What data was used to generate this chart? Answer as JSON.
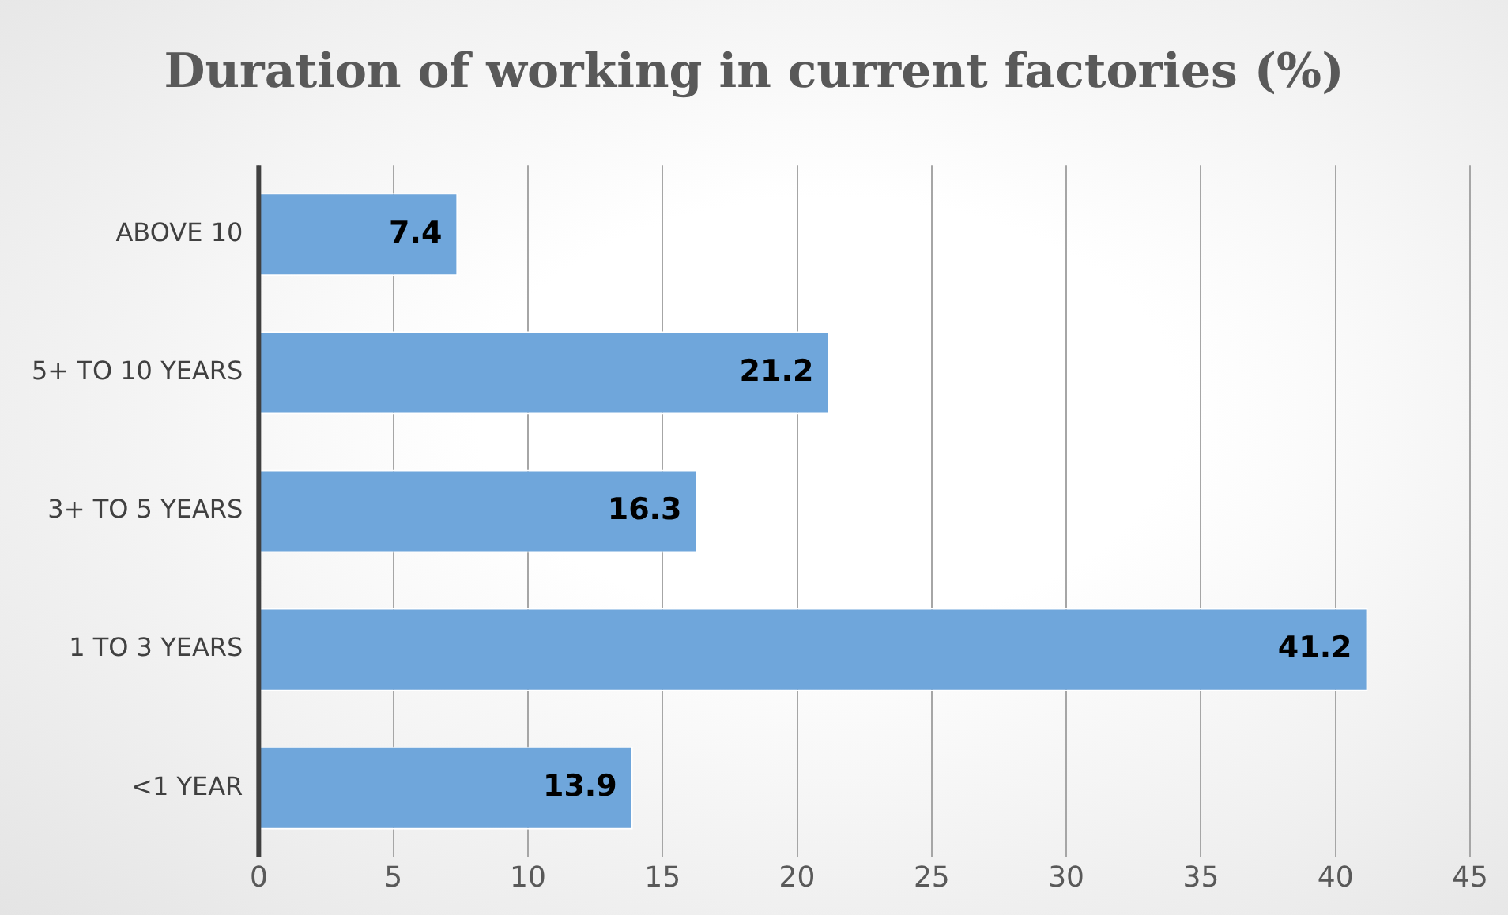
{
  "chart_data": {
    "type": "bar",
    "orientation": "horizontal",
    "title": "Duration of working in current factories (%)",
    "categories": [
      "ABOVE 10",
      "5+ TO 10 YEARS",
      "3+ TO 5 YEARS",
      "1 TO 3 YEARS",
      "<1 YEAR"
    ],
    "values": [
      7.4,
      21.2,
      16.3,
      41.2,
      13.9
    ],
    "color": "#6fa6db",
    "xlim": [
      0,
      45
    ],
    "xticks": [
      0,
      5,
      10,
      15,
      20,
      25,
      30,
      35,
      40,
      45
    ],
    "grid": "x",
    "data_labels": true,
    "legend": false
  }
}
